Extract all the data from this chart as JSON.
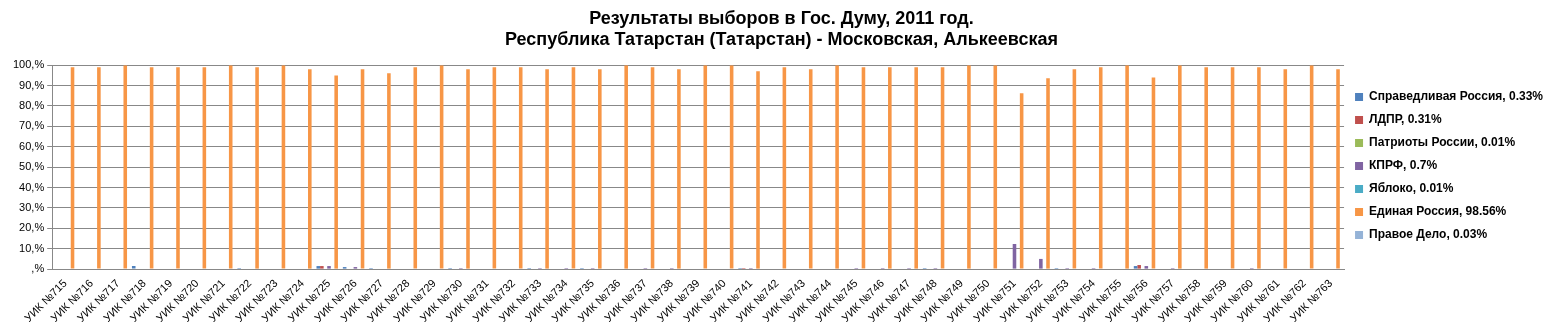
{
  "chart_data": {
    "type": "bar",
    "title": [
      "Результаты выборов в Гос. Думу, 2011 год.",
      "Республика Татарстан (Татарстан) - Московская, Алькеевская"
    ],
    "categories": [
      "УИК №715",
      "УИК №716",
      "УИК №717",
      "УИК №718",
      "УИК №719",
      "УИК №720",
      "УИК №721",
      "УИК №722",
      "УИК №723",
      "УИК №724",
      "УИК №725",
      "УИК №726",
      "УИК №727",
      "УИК №728",
      "УИК №729",
      "УИК №730",
      "УИК №731",
      "УИК №732",
      "УИК №733",
      "УИК №734",
      "УИК №735",
      "УИК №736",
      "УИК №737",
      "УИК №738",
      "УИК №739",
      "УИК №740",
      "УИК №741",
      "УИК №742",
      "УИК №743",
      "УИК №744",
      "УИК №745",
      "УИК №746",
      "УИК №747",
      "УИК №748",
      "УИК №749",
      "УИК №750",
      "УИК №751",
      "УИК №752",
      "УИК №753",
      "УИК №754",
      "УИК №755",
      "УИК №756",
      "УИК №757",
      "УИК №758",
      "УИК №759",
      "УИК №760",
      "УИК №761",
      "УИК №762",
      "УИК №763"
    ],
    "series": [
      {
        "name": "Справедливая Россия, 0.33%",
        "color": "#4f81bd",
        "values": [
          0,
          0,
          0,
          1.5,
          0,
          0,
          0,
          0.5,
          0,
          0,
          1.5,
          1,
          0.5,
          0,
          0,
          0.5,
          0,
          0,
          0.5,
          0,
          0.5,
          0,
          0,
          0,
          0,
          0,
          0.5,
          0,
          0,
          0,
          0,
          0,
          0,
          0.5,
          0,
          0,
          0,
          0,
          0.5,
          0,
          0,
          1.5,
          0,
          0,
          0,
          0,
          0,
          0,
          0
        ]
      },
      {
        "name": "ЛДПР, 0.31%",
        "color": "#c0504d",
        "values": [
          0,
          0,
          0,
          0,
          0,
          0,
          0,
          0,
          0,
          0,
          1.5,
          0,
          0,
          0,
          0,
          0,
          0,
          0,
          0,
          0,
          0,
          0,
          0,
          0,
          0,
          0,
          0.5,
          0,
          0,
          0,
          0,
          0,
          0,
          0,
          0,
          0,
          0,
          0,
          0,
          0,
          0,
          2,
          0,
          0,
          0,
          0,
          0,
          0,
          0
        ]
      },
      {
        "name": "Патриоты России, 0.01%",
        "color": "#9bbb59",
        "values": [
          0,
          0,
          0,
          0,
          0,
          0,
          0,
          0,
          0,
          0,
          0,
          0,
          0,
          0,
          0,
          0,
          0,
          0,
          0,
          0,
          0,
          0,
          0,
          0,
          0,
          0,
          0,
          0,
          0,
          0,
          0,
          0,
          0,
          0,
          0,
          0,
          0,
          0,
          0,
          0,
          0,
          0,
          0,
          0,
          0,
          0,
          0,
          0,
          0
        ]
      },
      {
        "name": "КПРФ, 0.7%",
        "color": "#8064a2",
        "values": [
          0,
          0,
          0,
          0,
          0,
          0,
          0,
          0,
          0,
          0,
          1.5,
          1,
          0,
          0,
          0,
          0.5,
          0,
          0,
          0.5,
          0.5,
          0.5,
          0,
          0.5,
          0.5,
          0,
          0,
          0.5,
          0,
          0,
          0,
          0.5,
          0.5,
          0.5,
          0.5,
          0,
          0,
          12.3,
          5,
          0.5,
          0.5,
          0,
          1.5,
          0.5,
          0,
          0,
          0.5,
          0,
          0,
          0
        ]
      },
      {
        "name": "Яблоко, 0.01%",
        "color": "#4bacc6",
        "values": [
          0,
          0,
          0,
          0,
          0,
          0,
          0,
          0,
          0,
          0,
          0,
          0,
          0,
          0,
          0,
          0,
          0,
          0,
          0,
          0,
          0,
          0,
          0,
          0,
          0,
          0,
          0,
          0,
          0,
          0,
          0,
          0,
          0,
          0,
          0,
          0,
          0,
          0,
          0,
          0,
          0,
          0,
          0,
          0,
          0,
          0,
          0,
          0,
          0
        ]
      },
      {
        "name": "Единая Россия, 98.56%",
        "color": "#f79646",
        "values": [
          99,
          99,
          100,
          99,
          99,
          99,
          100,
          99,
          100,
          98,
          95,
          98,
          96,
          99,
          100,
          98,
          99,
          99,
          98,
          99,
          98,
          100,
          99,
          98,
          100,
          100,
          97,
          99,
          98,
          100,
          99,
          99,
          99,
          99,
          100,
          100,
          86.3,
          93.6,
          98,
          99,
          100,
          94,
          100,
          99,
          99,
          99,
          98,
          100,
          98
        ]
      },
      {
        "name": "Правое Дело, 0.03%",
        "color": "#95b3d7",
        "values": [
          0,
          0,
          0,
          0,
          0,
          0,
          0,
          0,
          0,
          0,
          0,
          0,
          0,
          0,
          0,
          0,
          0,
          0,
          0,
          0,
          0,
          0,
          0,
          0,
          0,
          0,
          0,
          0,
          0,
          0,
          0,
          0,
          0,
          0,
          0,
          0,
          0,
          0,
          0,
          0,
          0,
          0,
          0,
          0,
          0,
          0,
          0,
          0,
          0
        ]
      }
    ],
    "ylim": [
      0,
      100
    ],
    "yticks": [
      {
        "value": 0,
        "label": ",%"
      },
      {
        "value": 10,
        "label": "10,%"
      },
      {
        "value": 20,
        "label": "20,%"
      },
      {
        "value": 30,
        "label": "30,%"
      },
      {
        "value": 40,
        "label": "40,%"
      },
      {
        "value": 50,
        "label": "50,%"
      },
      {
        "value": 60,
        "label": "60,%"
      },
      {
        "value": 70,
        "label": "70,%"
      },
      {
        "value": 80,
        "label": "80,%"
      },
      {
        "value": 90,
        "label": "90,%"
      },
      {
        "value": 100,
        "label": "100,%"
      }
    ],
    "grid": "y",
    "legend": "right"
  }
}
